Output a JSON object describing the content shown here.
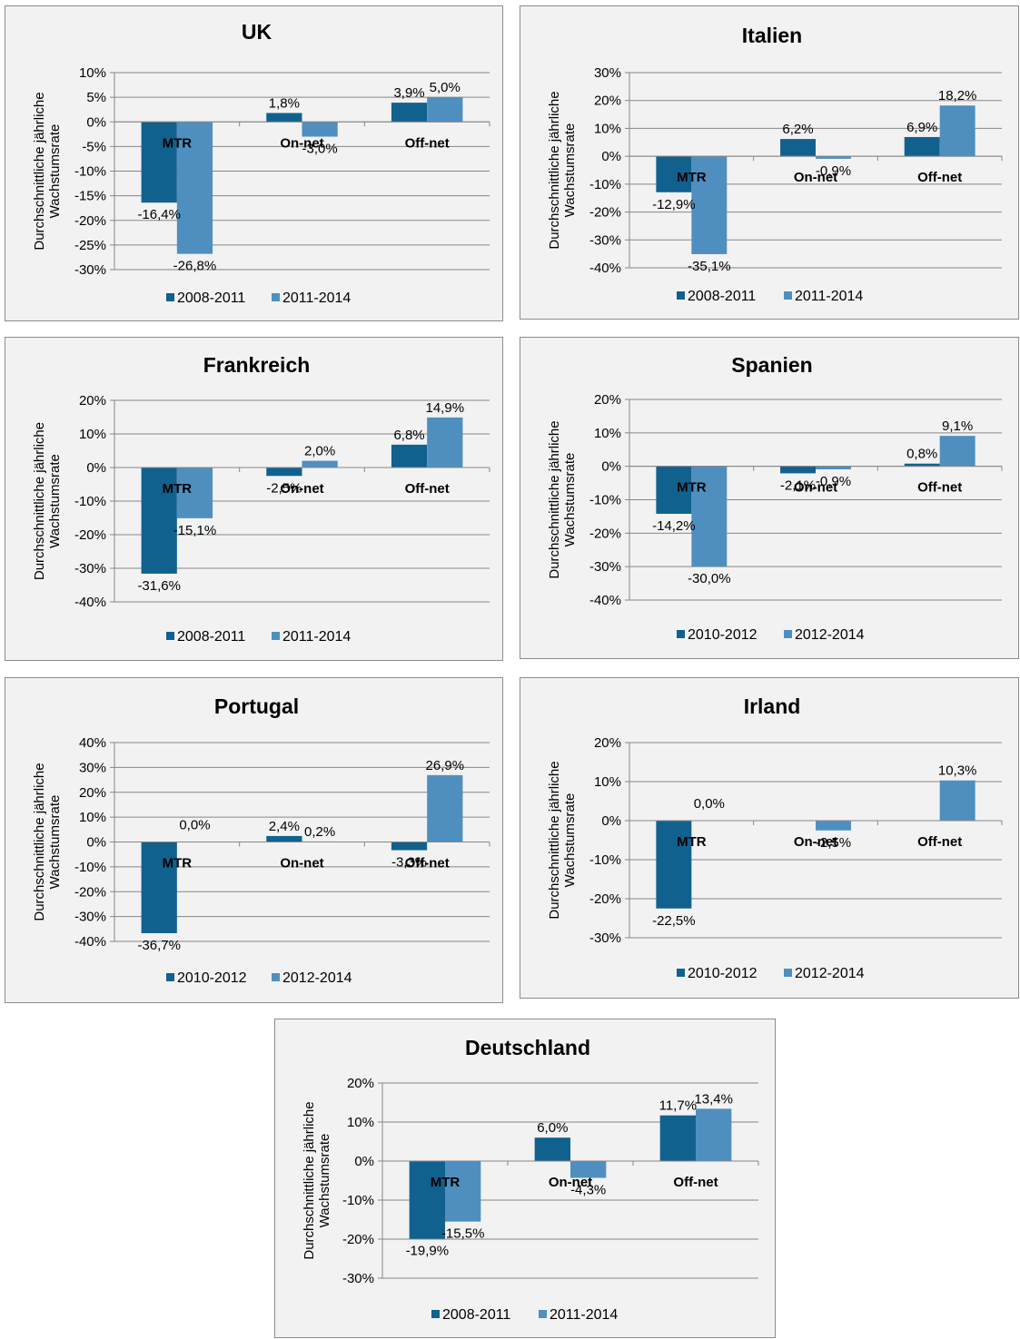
{
  "colors": {
    "series1": "#11618f",
    "series2": "#4f8fbf",
    "grid": "#878787",
    "panel": "#f2f2f2"
  },
  "chart_data": [
    {
      "type": "bar",
      "title": "UK",
      "ylabel_lines": [
        "Durchschnittliche jährliche",
        "Wachstumsrate"
      ],
      "categories": [
        "MTR",
        "On-net",
        "Off-net"
      ],
      "yticks": [
        "10%",
        "5%",
        "0%",
        "-5%",
        "-10%",
        "-15%",
        "-20%",
        "-25%",
        "-30%"
      ],
      "ylim": [
        -30,
        10
      ],
      "ystep": 5,
      "grid": true,
      "legend": "bottom",
      "series": [
        {
          "name": "2008-2011",
          "values": [
            -16.4,
            1.8,
            3.9
          ],
          "labels": [
            "-16,4%",
            "1,8%",
            "3,9%"
          ]
        },
        {
          "name": "2011-2014",
          "values": [
            -26.8,
            -3.0,
            5.0
          ],
          "labels": [
            "-26,8%",
            "-3,0%",
            "5,0%"
          ]
        }
      ]
    },
    {
      "type": "bar",
      "title": "Italien",
      "ylabel_lines": [
        "Durchschnittliche jährliche",
        "Wachstumsrate"
      ],
      "categories": [
        "MTR",
        "On-net",
        "Off-net"
      ],
      "yticks": [
        "30%",
        "20%",
        "10%",
        "0%",
        "-10%",
        "-20%",
        "-30%",
        "-40%"
      ],
      "ylim": [
        -40,
        30
      ],
      "ystep": 10,
      "grid": true,
      "legend": "bottom",
      "series": [
        {
          "name": "2008-2011",
          "values": [
            -12.9,
            6.2,
            6.9
          ],
          "labels": [
            "-12,9%",
            "6,2%",
            "6,9%"
          ]
        },
        {
          "name": "2011-2014",
          "values": [
            -35.1,
            -0.9,
            18.2
          ],
          "labels": [
            "-35,1%",
            "-0,9%",
            "18,2%"
          ]
        }
      ]
    },
    {
      "type": "bar",
      "title": "Frankreich",
      "ylabel_lines": [
        "Durchschnittliche jährliche",
        "Wachstumsrate"
      ],
      "categories": [
        "MTR",
        "On-net",
        "Off-net"
      ],
      "yticks": [
        "20%",
        "10%",
        "0%",
        "-10%",
        "-20%",
        "-30%",
        "-40%"
      ],
      "ylim": [
        -40,
        20
      ],
      "ystep": 10,
      "grid": true,
      "legend": "bottom",
      "series": [
        {
          "name": "2008-2011",
          "values": [
            -31.6,
            -2.5,
            6.8
          ],
          "labels": [
            "-31,6%",
            "-2,5%",
            "6,8%"
          ]
        },
        {
          "name": "2011-2014",
          "values": [
            -15.1,
            2.0,
            14.9
          ],
          "labels": [
            "-15,1%",
            "2,0%",
            "14,9%"
          ]
        }
      ]
    },
    {
      "type": "bar",
      "title": "Spanien",
      "ylabel_lines": [
        "Durchschnittliche jährliche",
        "Wachstumsrate"
      ],
      "categories": [
        "MTR",
        "On-net",
        "Off-net"
      ],
      "yticks": [
        "20%",
        "10%",
        "0%",
        "-10%",
        "-20%",
        "-30%",
        "-40%"
      ],
      "ylim": [
        -40,
        20
      ],
      "ystep": 10,
      "grid": true,
      "legend": "bottom",
      "series": [
        {
          "name": "2010-2012",
          "values": [
            -14.2,
            -2.1,
            0.8
          ],
          "labels": [
            "-14,2%",
            "-2,1%",
            "0,8%"
          ]
        },
        {
          "name": "2012-2014",
          "values": [
            -30.0,
            -0.9,
            9.1
          ],
          "labels": [
            "-30,0%",
            "-0,9%",
            "9,1%"
          ]
        }
      ]
    },
    {
      "type": "bar",
      "title": "Portugal",
      "ylabel_lines": [
        "Durchschnittliche jährliche",
        "Wachstumsrate"
      ],
      "categories": [
        "MTR",
        "On-net",
        "Off-net"
      ],
      "yticks": [
        "40%",
        "30%",
        "20%",
        "10%",
        "0%",
        "-10%",
        "-20%",
        "-30%",
        "-40%"
      ],
      "ylim": [
        -40,
        40
      ],
      "ystep": 10,
      "grid": true,
      "legend": "bottom",
      "series": [
        {
          "name": "2010-2012",
          "values": [
            -36.7,
            2.4,
            -3.3
          ],
          "labels": [
            "-36,7%",
            "2,4%",
            "-3,3%"
          ]
        },
        {
          "name": "2012-2014",
          "values": [
            0.0,
            0.2,
            26.9
          ],
          "labels": [
            "0,0%",
            "0,2%",
            "26,9%"
          ]
        }
      ]
    },
    {
      "type": "bar",
      "title": "Irland",
      "ylabel_lines": [
        "Durchschnittliche jährliche",
        "Wachstumsrate"
      ],
      "categories": [
        "MTR",
        "On-net",
        "Off-net"
      ],
      "yticks": [
        "20%",
        "10%",
        "0%",
        "-10%",
        "-20%",
        "-30%"
      ],
      "ylim": [
        -30,
        20
      ],
      "ystep": 10,
      "grid": true,
      "legend": "bottom",
      "series": [
        {
          "name": "2010-2012",
          "values": [
            -22.5,
            null,
            null
          ],
          "labels": [
            "-22,5%",
            "",
            ""
          ]
        },
        {
          "name": "2012-2014",
          "values": [
            0.0,
            -2.5,
            10.3
          ],
          "labels": [
            "0,0%",
            "-2,5%",
            "10,3%"
          ]
        }
      ]
    },
    {
      "type": "bar",
      "title": "Deutschland",
      "ylabel_lines": [
        "Durchschnittliche jährliche",
        "Wachstumsrate"
      ],
      "categories": [
        "MTR",
        "On-net",
        "Off-net"
      ],
      "yticks": [
        "20%",
        "10%",
        "0%",
        "-10%",
        "-20%",
        "-30%"
      ],
      "ylim": [
        -30,
        20
      ],
      "ystep": 10,
      "grid": true,
      "legend": "bottom",
      "series": [
        {
          "name": "2008-2011",
          "values": [
            -19.9,
            6.0,
            11.7
          ],
          "labels": [
            "-19,9%",
            "6,0%",
            "11,7%"
          ]
        },
        {
          "name": "2011-2014",
          "values": [
            -15.5,
            -4.3,
            13.4
          ],
          "labels": [
            "-15,5%",
            "-4,3%",
            "13,4%"
          ]
        }
      ]
    }
  ]
}
